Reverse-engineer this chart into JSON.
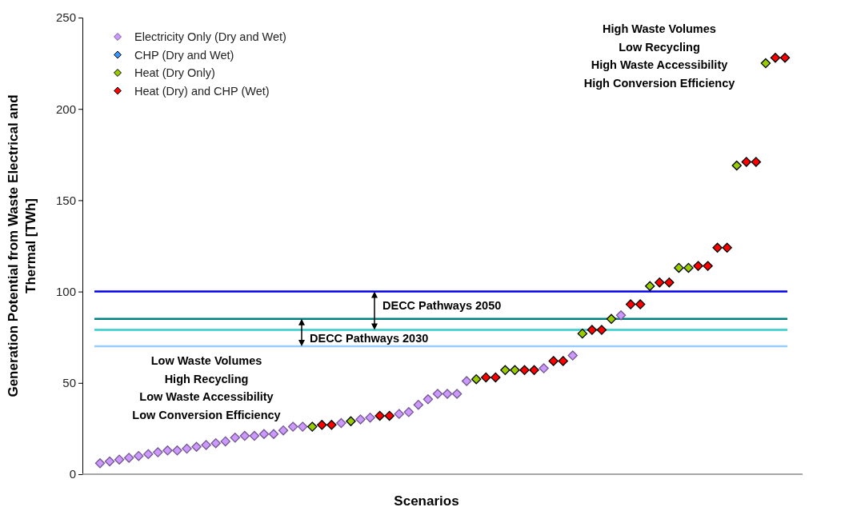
{
  "chart_data": {
    "type": "scatter",
    "xlabel": "Scenarios",
    "ylabel": "Generation Potential from Waste Electrical and Thermal [TWh]",
    "categories": [
      null,
      null,
      null,
      null,
      null,
      null,
      null,
      null,
      null,
      null,
      null,
      null,
      null,
      null,
      null,
      null,
      null,
      null,
      null,
      null,
      null,
      null,
      null,
      null,
      null,
      null,
      null,
      null,
      null,
      null,
      null,
      null,
      null,
      null,
      null,
      null,
      null,
      null,
      null,
      null,
      null,
      null,
      null,
      null,
      null,
      null,
      null,
      null,
      null,
      null,
      null,
      null,
      null,
      null,
      null,
      null,
      null,
      null,
      null,
      null,
      null,
      null,
      null,
      null,
      null,
      null,
      null,
      null,
      null,
      null,
      null,
      null
    ],
    "series": [
      {
        "name": "Electricity Only (Dry and Wet)",
        "color": "#cc99ff",
        "values": [
          6,
          7,
          8,
          9,
          10,
          11,
          12,
          13,
          13,
          14,
          15,
          16,
          17,
          18,
          20,
          21,
          21,
          22,
          22,
          24,
          26,
          26,
          null,
          null,
          null,
          28,
          null,
          30,
          31,
          null,
          null,
          33,
          34,
          38,
          41,
          44,
          44,
          44,
          51,
          null,
          null,
          null,
          null,
          null,
          null,
          null,
          58,
          null,
          null,
          65,
          null,
          null,
          null,
          null,
          87,
          null,
          null,
          null,
          null,
          null,
          null,
          null,
          null,
          null,
          null,
          null,
          null,
          null,
          null,
          null,
          null,
          null
        ]
      },
      {
        "name": "CHP (Dry and Wet)",
        "color": "#3399ff",
        "values": [
          null,
          null,
          null,
          null,
          null,
          null,
          null,
          null,
          null,
          null,
          null,
          null,
          null,
          null,
          null,
          null,
          null,
          null,
          null,
          null,
          null,
          null,
          null,
          null,
          null,
          null,
          null,
          null,
          null,
          null,
          null,
          null,
          null,
          null,
          null,
          null,
          null,
          null,
          null,
          null,
          null,
          null,
          null,
          null,
          null,
          null,
          null,
          null,
          null,
          null,
          null,
          null,
          null,
          null,
          null,
          null,
          null,
          null,
          null,
          null,
          null,
          null,
          null,
          null,
          null,
          null,
          null,
          null,
          null,
          null,
          null,
          null
        ]
      },
      {
        "name": "Heat (Dry Only)",
        "color": "#99cc00",
        "values": [
          null,
          null,
          null,
          null,
          null,
          null,
          null,
          null,
          null,
          null,
          null,
          null,
          null,
          null,
          null,
          null,
          null,
          null,
          null,
          null,
          null,
          null,
          26,
          null,
          null,
          null,
          29,
          null,
          null,
          null,
          null,
          null,
          null,
          null,
          null,
          null,
          null,
          null,
          null,
          52,
          null,
          null,
          57,
          57,
          null,
          null,
          null,
          null,
          null,
          null,
          77,
          null,
          null,
          85,
          null,
          null,
          null,
          103,
          null,
          null,
          113,
          113,
          null,
          null,
          null,
          null,
          169,
          null,
          null,
          225,
          null,
          null
        ]
      },
      {
        "name": "Heat (Dry) and CHP (Wet)",
        "color": "#ff0000",
        "values": [
          null,
          null,
          null,
          null,
          null,
          null,
          null,
          null,
          null,
          null,
          null,
          null,
          null,
          null,
          null,
          null,
          null,
          null,
          null,
          null,
          null,
          null,
          null,
          27,
          27,
          null,
          null,
          null,
          null,
          32,
          32,
          null,
          null,
          null,
          null,
          null,
          null,
          null,
          null,
          null,
          53,
          53,
          null,
          null,
          57,
          57,
          null,
          62,
          62,
          null,
          null,
          79,
          79,
          null,
          null,
          93,
          93,
          null,
          105,
          105,
          null,
          null,
          114,
          114,
          124,
          124,
          null,
          171,
          171,
          null,
          228,
          228
        ]
      }
    ],
    "ylim": [
      0,
      250
    ],
    "yticks": [
      0,
      50,
      100,
      150,
      200,
      250
    ],
    "marker": "diamond",
    "legend": "top left",
    "ref_lines": [
      {
        "axis": "y",
        "value": 100,
        "color": "#0000ee"
      },
      {
        "axis": "y",
        "value": 85,
        "color": "#007f7f"
      },
      {
        "axis": "y",
        "value": 79,
        "color": "#33cccc"
      },
      {
        "axis": "y",
        "value": 70,
        "color": "#99ccff"
      }
    ],
    "annotations": [
      "DECC Pathways 2050",
      "DECC Pathways 2030",
      "Low Waste Volumes\nHigh Recycling\nLow Waste Accessibility\nLow Conversion Efficiency",
      "High Waste Volumes\nLow Recycling\nHigh Waste Accessibility\nHigh Conversion Efficiency"
    ]
  }
}
